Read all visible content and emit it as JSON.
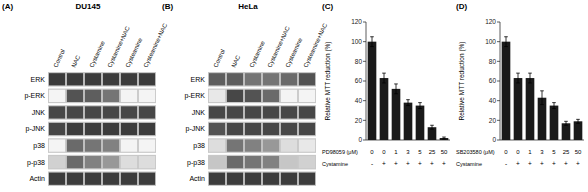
{
  "chart_data": [
    {
      "type": "heatmap",
      "title": "DU145",
      "annotations": [
        "(A)"
      ],
      "x_categories": [
        "Control",
        "NAC",
        "Cystamine",
        "Cystamine+NAC",
        "Cysteamine",
        "Cysteamine+NAC"
      ],
      "y_categories": [
        "ERK",
        "p-ERK",
        "JNK",
        "p-JNK",
        "p38",
        "p-p38",
        "Actin"
      ],
      "cells": [
        [
          0.85,
          0.85,
          0.85,
          0.85,
          0.85,
          0.85
        ],
        [
          0.05,
          0.75,
          0.7,
          0.6,
          0.05,
          0.05
        ],
        [
          0.8,
          0.8,
          0.8,
          0.8,
          0.8,
          0.8
        ],
        [
          0.8,
          0.85,
          0.85,
          0.85,
          0.85,
          0.85
        ],
        [
          0.05,
          0.65,
          0.6,
          0.55,
          0.05,
          0.05
        ],
        [
          0.2,
          0.65,
          0.55,
          0.45,
          0.15,
          0.15
        ],
        [
          0.85,
          0.85,
          0.85,
          0.85,
          0.85,
          0.85
        ]
      ],
      "color": "#c8c8c8"
    },
    {
      "type": "heatmap",
      "title": "HeLa",
      "annotations": [
        "(B)"
      ],
      "x_categories": [
        "Control",
        "NAC",
        "Cystamine",
        "Cystamine+NAC",
        "Cysteamine",
        "Cysteamine+NAC"
      ],
      "y_categories": [
        "ERK",
        "p-ERK",
        "JNK",
        "p-JNK",
        "p38",
        "p-p38",
        "Actin"
      ],
      "cells": [
        [
          0.7,
          0.7,
          0.6,
          0.6,
          0.65,
          0.75
        ],
        [
          0.1,
          0.8,
          0.75,
          0.65,
          0.05,
          0.05
        ],
        [
          0.8,
          0.8,
          0.8,
          0.8,
          0.8,
          0.8
        ],
        [
          0.75,
          0.8,
          0.8,
          0.8,
          0.8,
          0.8
        ],
        [
          0.15,
          0.6,
          0.55,
          0.45,
          0.15,
          0.1
        ],
        [
          0.25,
          0.65,
          0.6,
          0.55,
          0.25,
          0.2
        ],
        [
          0.85,
          0.85,
          0.85,
          0.85,
          0.85,
          0.85
        ]
      ],
      "color": "#c8c8c8"
    },
    {
      "type": "bar",
      "annotations": [
        "(C)"
      ],
      "categories": [
        "0",
        "0",
        "1",
        "3",
        "5",
        "25",
        "50"
      ],
      "xlabel": "PD98059 (μM)",
      "categories2": [
        "-",
        "+",
        "+",
        "+",
        "+",
        "+",
        "+"
      ],
      "xlabel2": "Cystamine",
      "values": [
        100,
        63,
        52,
        38,
        35,
        13,
        2
      ],
      "errors": [
        5,
        5,
        5,
        3,
        3,
        2,
        1
      ],
      "ylabel": "Relative MTT reduction (%)",
      "ylim": [
        0,
        120
      ],
      "yticks": [
        0,
        20,
        40,
        60,
        80,
        100,
        120
      ],
      "color": "#1a1a1a"
    },
    {
      "type": "bar",
      "annotations": [
        "(D)"
      ],
      "categories": [
        "0",
        "0",
        "1",
        "3",
        "5",
        "25",
        "50"
      ],
      "xlabel": "SB203580 (μM)",
      "categories2": [
        "-",
        "+",
        "+",
        "+",
        "+",
        "+",
        "+"
      ],
      "xlabel2": "Cystamine",
      "values": [
        100,
        63,
        63,
        43,
        35,
        17,
        19
      ],
      "errors": [
        5,
        5,
        5,
        7,
        3,
        2,
        2
      ],
      "ylabel": "Relative MTT reduction (%)",
      "ylim": [
        0,
        120
      ],
      "yticks": [
        0,
        20,
        40,
        60,
        80,
        100,
        120
      ],
      "color": "#1a1a1a"
    }
  ]
}
